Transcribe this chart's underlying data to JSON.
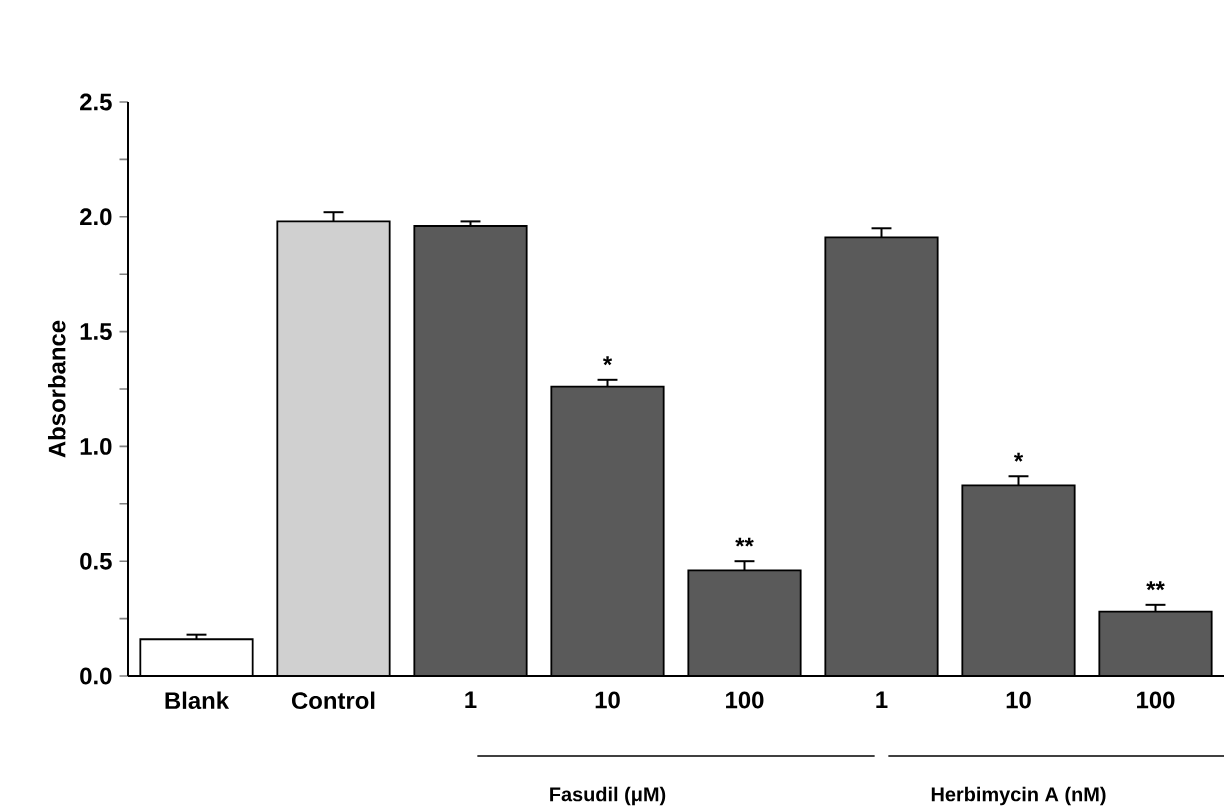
{
  "chart_data": {
    "type": "bar",
    "ylabel": "Absorbance",
    "categories": [
      "Blank",
      "Control",
      "1",
      "10",
      "100",
      "1",
      "10",
      "100"
    ],
    "values": [
      0.16,
      1.98,
      1.96,
      1.26,
      0.46,
      1.91,
      0.83,
      0.28
    ],
    "errors": [
      0.02,
      0.04,
      0.02,
      0.03,
      0.04,
      0.04,
      0.04,
      0.03
    ],
    "value_labels": [
      null,
      null,
      null,
      "*",
      "**",
      null,
      "*",
      "**"
    ],
    "colors": [
      "#ffffff",
      "#d0d0d0",
      "#5a5a5a",
      "#5a5a5a",
      "#5a5a5a",
      "#5a5a5a",
      "#5a5a5a",
      "#5a5a5a"
    ],
    "ylim": [
      0,
      2.5
    ],
    "yticks": [
      {
        "value": 0,
        "label": "0.0"
      },
      {
        "value": 0.25,
        "label": null
      },
      {
        "value": 0.5,
        "label": "0.5"
      },
      {
        "value": 0.75,
        "label": null
      },
      {
        "value": 1,
        "label": "1.0"
      },
      {
        "value": 1.25,
        "label": null
      },
      {
        "value": 1.5,
        "label": "1.5"
      },
      {
        "value": 1.75,
        "label": null
      },
      {
        "value": 2,
        "label": "2.0"
      },
      {
        "value": 2.25,
        "label": null
      },
      {
        "value": 2.5,
        "label": "2.5"
      }
    ],
    "annotations": [
      "Fasudil (μM)",
      "Herbimycin A (nM)"
    ]
  }
}
